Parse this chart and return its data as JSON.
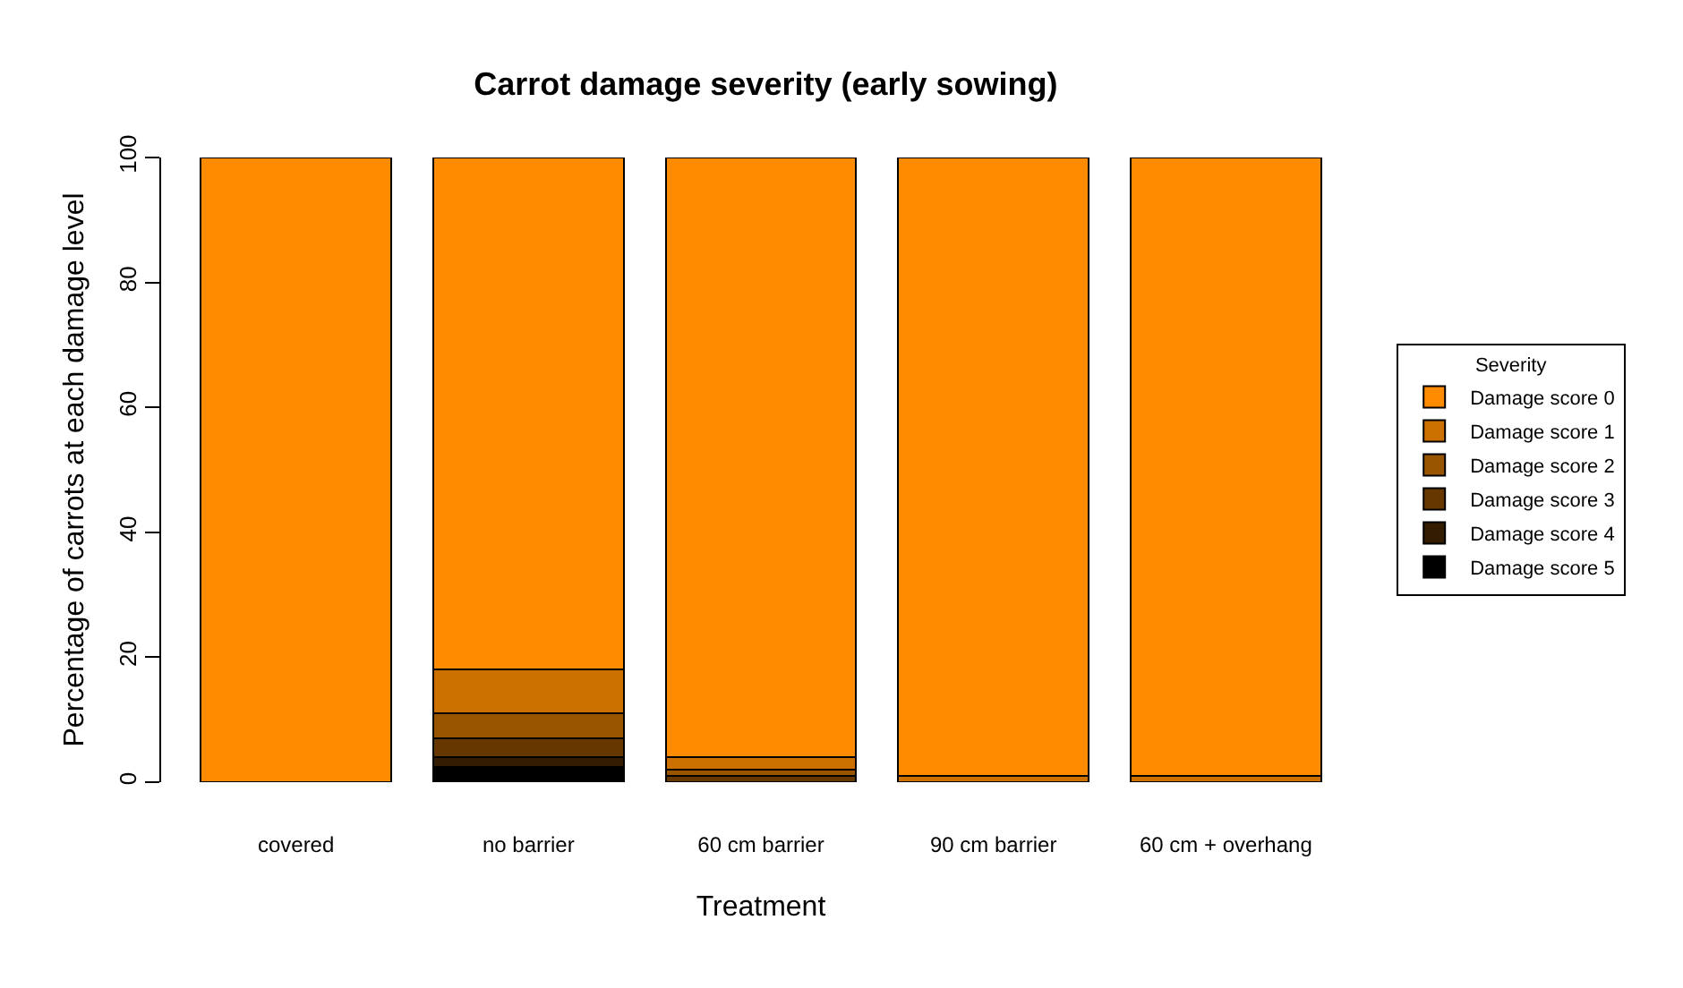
{
  "chart_data": {
    "type": "bar",
    "stacked": true,
    "title": "Carrot damage severity (early sowing)",
    "xlabel": "Treatment",
    "ylabel": "Percentage of carrots at each damage level",
    "legend_title": "Severity",
    "legend": "right",
    "categories": [
      "covered",
      "no barrier",
      "60 cm barrier",
      "90 cm barrier",
      "60 cm + overhang"
    ],
    "series": [
      {
        "name": "Damage score 5",
        "color": "#000000",
        "values": [
          0,
          2.5,
          0,
          0,
          0
        ]
      },
      {
        "name": "Damage score 4",
        "color": "#331c00",
        "values": [
          0,
          1.5,
          0,
          0,
          0
        ]
      },
      {
        "name": "Damage score 3",
        "color": "#663800",
        "values": [
          0,
          3,
          1,
          0,
          0
        ]
      },
      {
        "name": "Damage score 2",
        "color": "#995400",
        "values": [
          0,
          4,
          1,
          0,
          0
        ]
      },
      {
        "name": "Damage score 1",
        "color": "#cc7000",
        "values": [
          0,
          7,
          2,
          1,
          1
        ]
      },
      {
        "name": "Damage score 0",
        "color": "#ff8c00",
        "values": [
          100,
          82,
          96,
          99,
          99
        ]
      }
    ],
    "ylim": [
      0,
      100
    ],
    "yticks": [
      0,
      20,
      40,
      60,
      80,
      100
    ]
  }
}
